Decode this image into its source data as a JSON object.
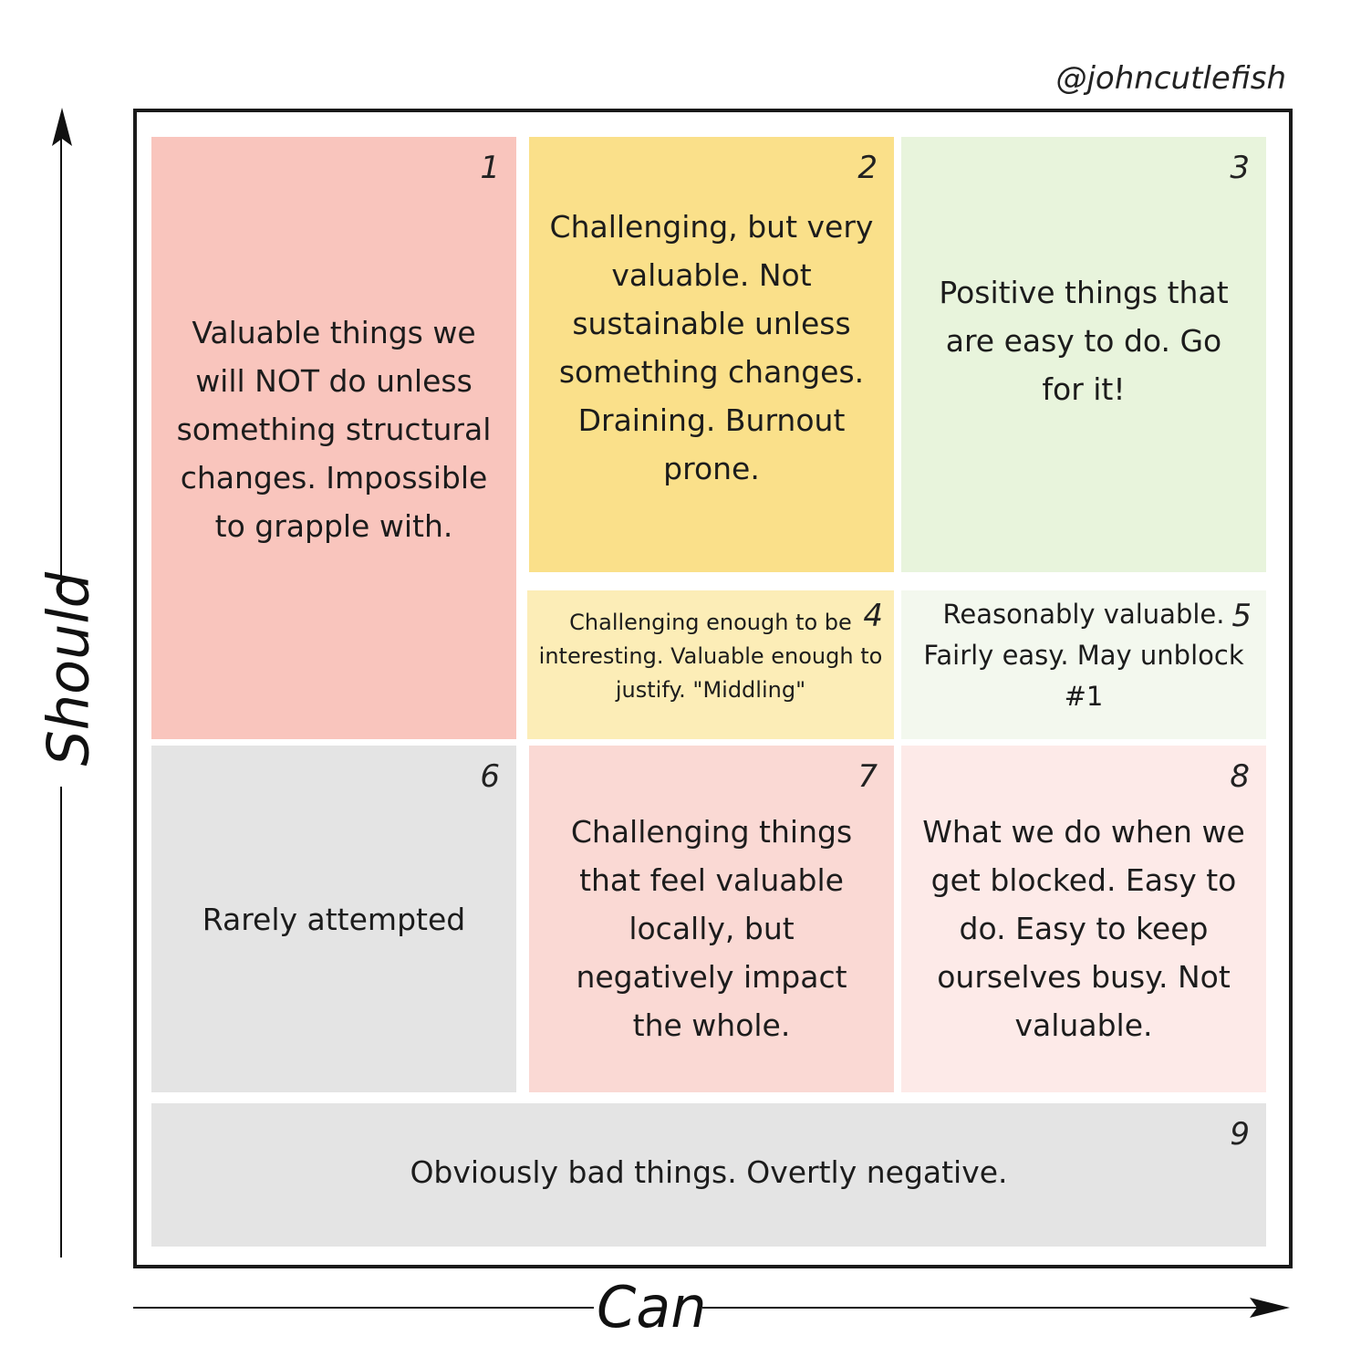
{
  "credit": "@johncutlefish",
  "axes": {
    "y_label": "Should",
    "x_label": "Can"
  },
  "cells": [
    {
      "num": "1",
      "text": "Valuable things we will NOT do unless something structural changes. Impossible to grapple with.",
      "color": "#f9c5bd"
    },
    {
      "num": "2",
      "text": "Challenging, but very valuable. Not sustainable unless something changes. Draining. Burnout prone.",
      "color": "#fae08a"
    },
    {
      "num": "3",
      "text": "Positive things that are easy to do. Go for it!",
      "color": "#e8f4dc"
    },
    {
      "num": "4",
      "text": "Challenging enough to be interesting. Valuable enough to justify. \"Middling\"",
      "color": "#fcedb7"
    },
    {
      "num": "5",
      "text": "Reasonably valuable. Fairly easy. May unblock #1",
      "color": "#f3f8ee"
    },
    {
      "num": "6",
      "text": "Rarely attempted",
      "color": "#e4e4e4"
    },
    {
      "num": "7",
      "text": "Challenging things that feel valuable locally, but negatively impact the whole.",
      "color": "#fad9d4"
    },
    {
      "num": "8",
      "text": "What we do when we get blocked. Easy to do. Easy to keep ourselves busy. Not valuable.",
      "color": "#fdeae8"
    },
    {
      "num": "9",
      "text": "Obviously bad things. Overtly negative.",
      "color": "#e4e4e4"
    }
  ]
}
